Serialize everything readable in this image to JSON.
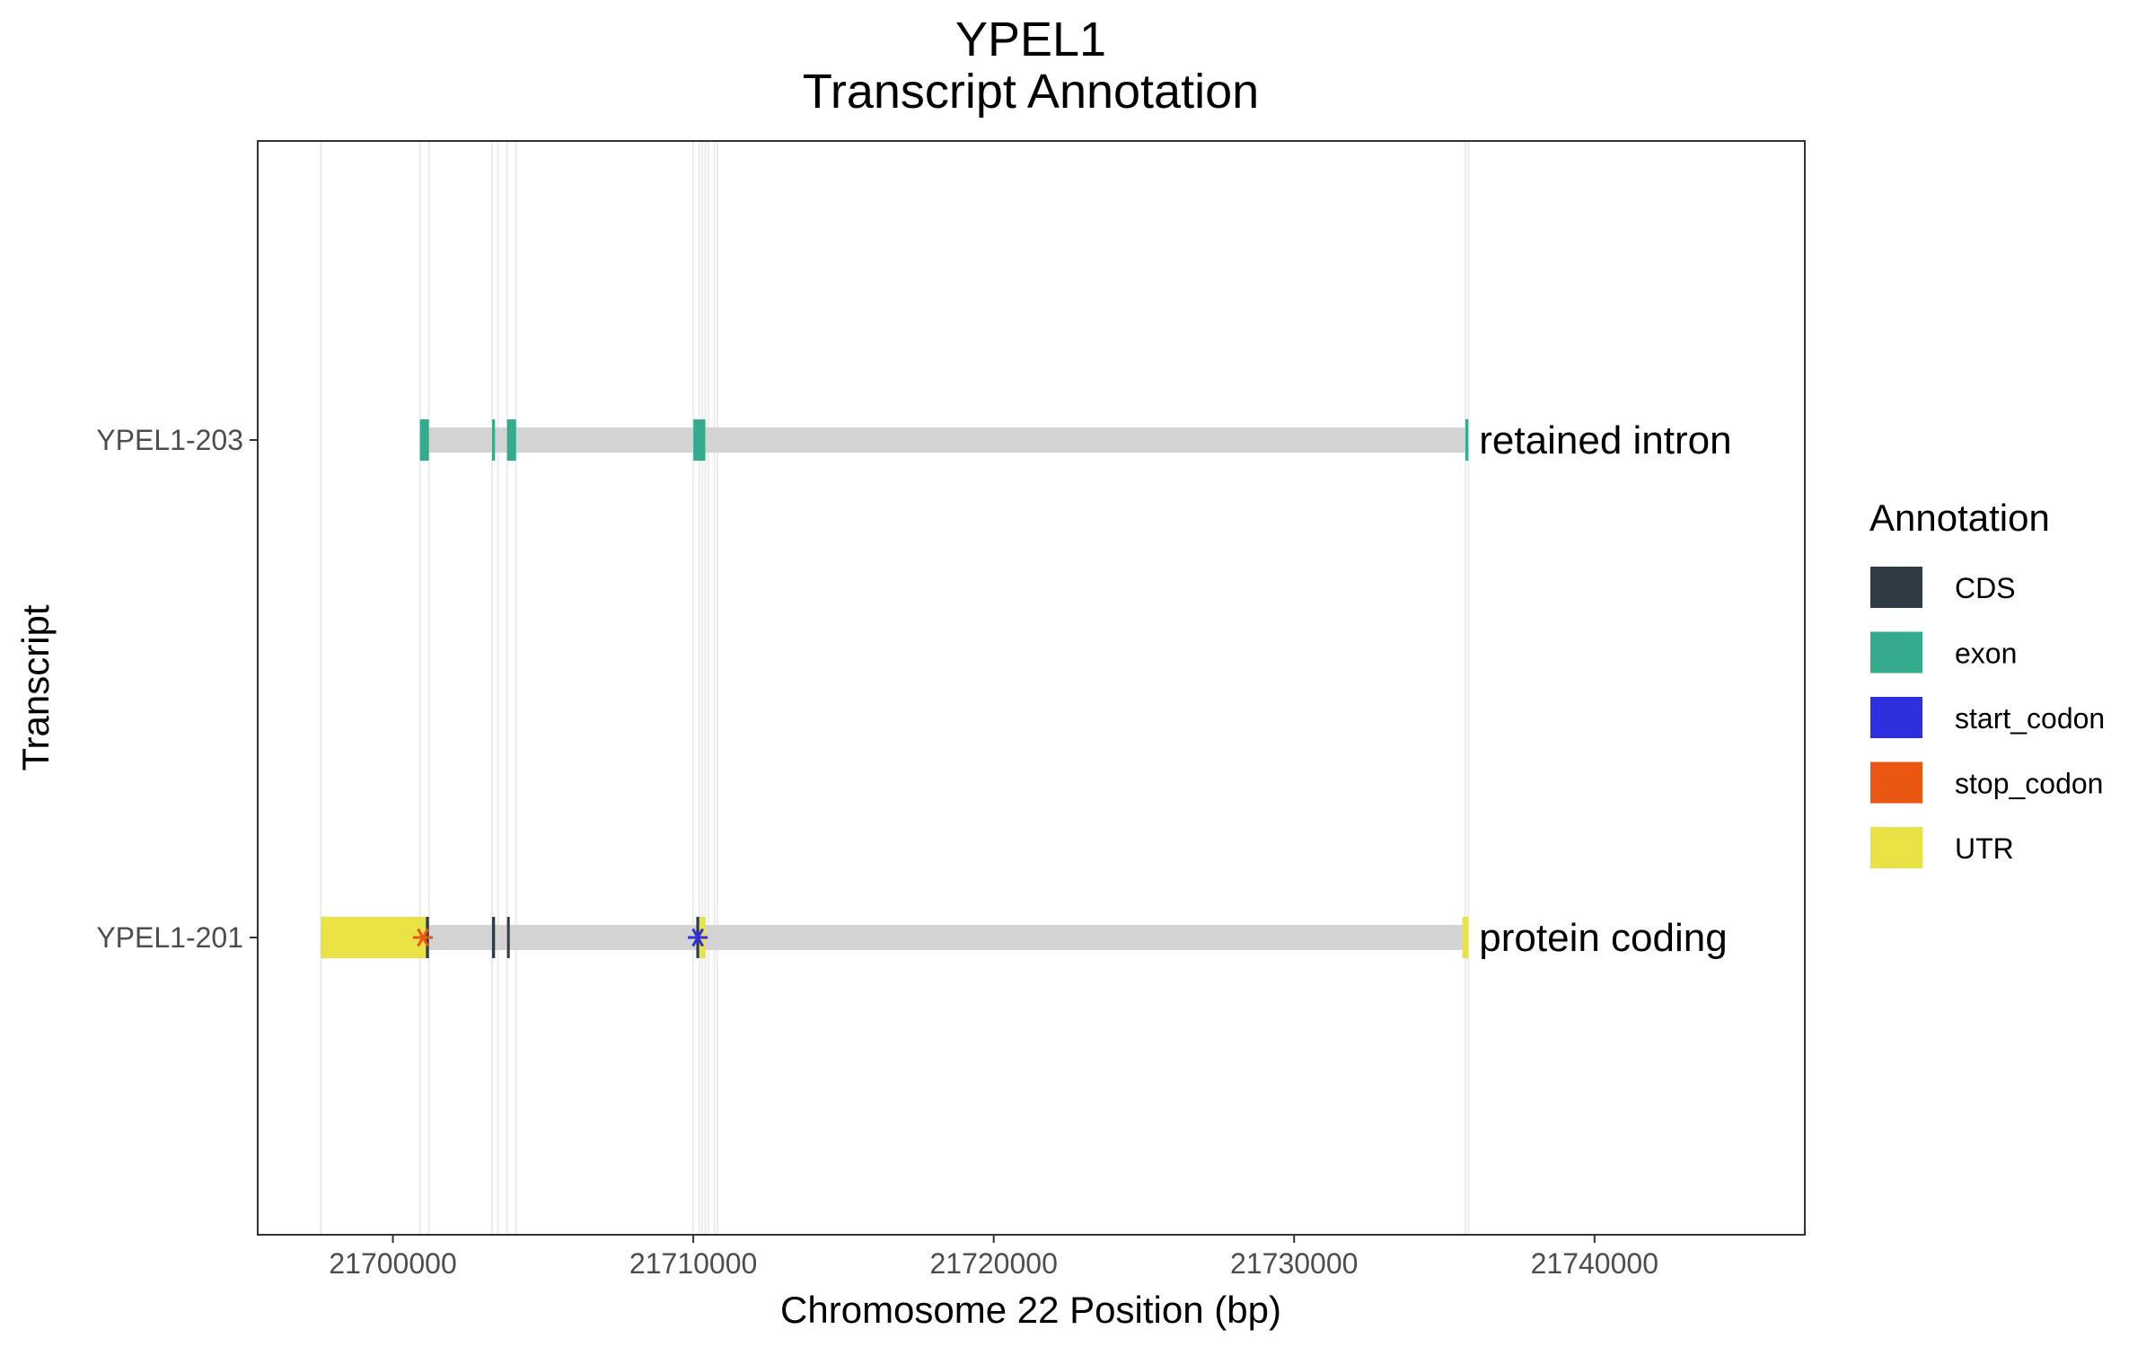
{
  "chart_data": {
    "type": "gene_structure",
    "title": "YPEL1",
    "subtitle": "Transcript Annotation",
    "xlabel": "Chromosome 22 Position (bp)",
    "ylabel": "Transcript",
    "xlim": [
      21695500,
      21747000
    ],
    "x_ticks": [
      21700000,
      21710000,
      21720000,
      21730000,
      21740000
    ],
    "x_tick_labels": [
      "21700000",
      "21710000",
      "21720000",
      "21730000",
      "21740000"
    ],
    "vertical_gridlines": [
      21697600,
      21700900,
      21701200,
      21703300,
      21703500,
      21703800,
      21704100,
      21710000,
      21710200,
      21710300,
      21710400,
      21710500,
      21710700,
      21710800,
      21735700,
      21735800
    ],
    "grid": true,
    "legend_position": "right",
    "legend": {
      "title": "Annotation",
      "items": [
        {
          "label": "CDS",
          "color": "#2f3b45"
        },
        {
          "label": "exon",
          "color": "#35ab8e"
        },
        {
          "label": "start_codon",
          "color": "#2e30de"
        },
        {
          "label": "stop_codon",
          "color": "#ea5712"
        },
        {
          "label": "UTR",
          "color": "#e9e245"
        }
      ]
    },
    "transcripts": [
      {
        "name": "YPEL1-203",
        "biotype": "retained intron",
        "start": 21700900,
        "end": 21735800,
        "features": [
          {
            "type": "exon",
            "start": 21700900,
            "end": 21701200
          },
          {
            "type": "exon",
            "start": 21703300,
            "end": 21703400
          },
          {
            "type": "exon",
            "start": 21703800,
            "end": 21704100
          },
          {
            "type": "exon",
            "start": 21710000,
            "end": 21710400
          },
          {
            "type": "exon",
            "start": 21735700,
            "end": 21735800
          }
        ]
      },
      {
        "name": "YPEL1-201",
        "biotype": "protein coding",
        "start": 21697600,
        "end": 21735800,
        "features": [
          {
            "type": "UTR",
            "start": 21697600,
            "end": 21701100
          },
          {
            "type": "CDS",
            "start": 21701100,
            "end": 21701200
          },
          {
            "type": "CDS",
            "start": 21703300,
            "end": 21703400
          },
          {
            "type": "CDS",
            "start": 21703800,
            "end": 21703850
          },
          {
            "type": "CDS",
            "start": 21710100,
            "end": 21710200
          },
          {
            "type": "UTR",
            "start": 21710200,
            "end": 21710400
          },
          {
            "type": "UTR",
            "start": 21735600,
            "end": 21735800
          }
        ],
        "markers": [
          {
            "type": "stop_codon",
            "position": 21701000
          },
          {
            "type": "start_codon",
            "position": 21710150
          }
        ]
      }
    ]
  }
}
